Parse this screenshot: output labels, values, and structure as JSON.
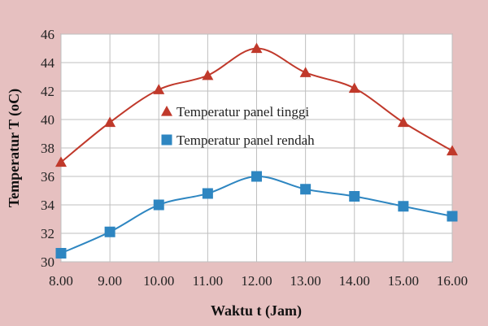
{
  "chart_data": {
    "type": "line",
    "xlabel": "Waktu t (Jam)",
    "ylabel": "Temperatur  T  (oC)",
    "x": [
      8,
      9,
      10,
      11,
      12,
      13,
      14,
      15,
      16
    ],
    "x_tick_labels": [
      "8.00",
      "9.00",
      "10.00",
      "11.00",
      "12.00",
      "13.00",
      "14.00",
      "15.00",
      "16.00"
    ],
    "y_ticks": [
      30,
      32,
      34,
      36,
      38,
      40,
      42,
      44,
      46
    ],
    "xlim": [
      8,
      16
    ],
    "ylim": [
      30,
      46
    ],
    "grid": true,
    "legend_position": "center",
    "series": [
      {
        "name": "Temperatur panel tinggi",
        "marker": "triangle",
        "color": "#c0392b",
        "values": [
          37.0,
          39.8,
          42.1,
          43.1,
          45.0,
          43.3,
          42.2,
          39.8,
          37.8
        ]
      },
      {
        "name": "Temperatur panel rendah",
        "marker": "square",
        "color": "#2e86c1",
        "values": [
          30.6,
          32.1,
          34.0,
          34.8,
          36.0,
          35.1,
          34.6,
          33.9,
          33.2
        ]
      }
    ],
    "colors": {
      "background": "#e6c0c0",
      "plot_area": "#ffffff",
      "grid": "#bfbfbf"
    }
  }
}
